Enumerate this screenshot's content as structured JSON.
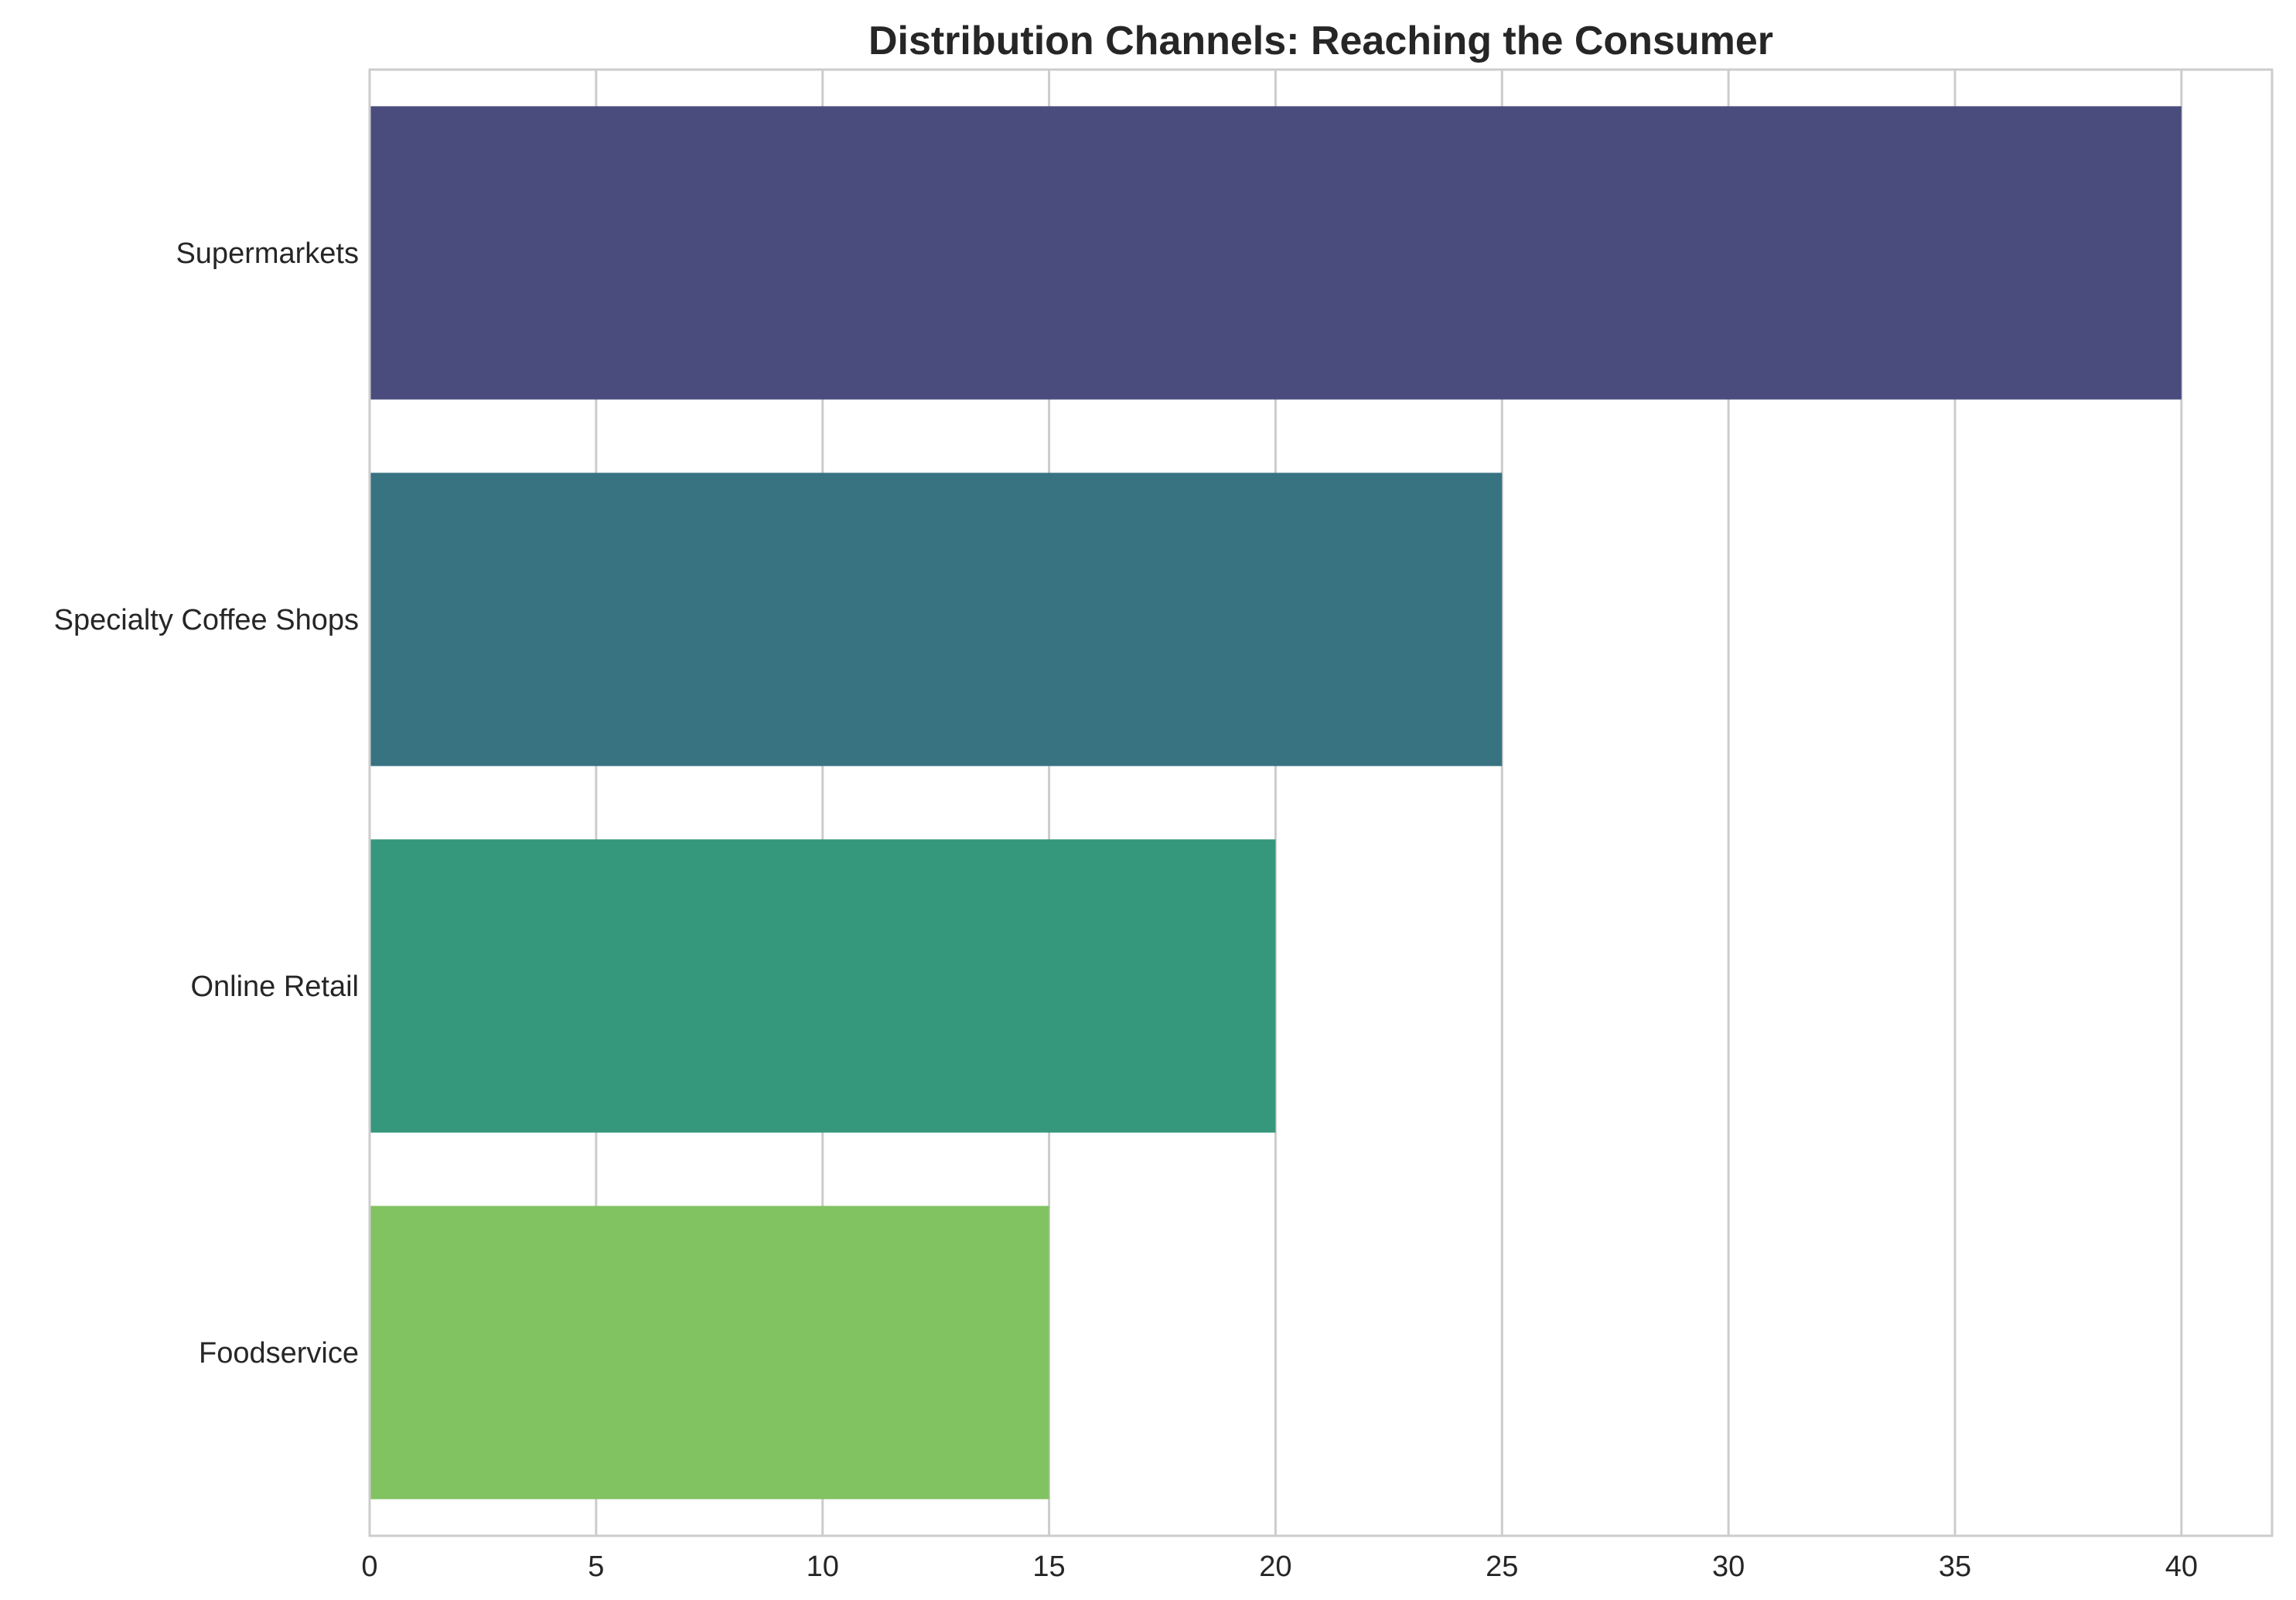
{
  "chart_data": {
    "type": "bar",
    "orientation": "horizontal",
    "title": "Distribution Channels: Reaching the Consumer",
    "xlabel": "",
    "ylabel": "",
    "categories": [
      "Supermarkets",
      "Specialty Coffee Shops",
      "Online Retail",
      "Foodservice"
    ],
    "values": [
      40,
      25,
      20,
      15
    ],
    "colors": [
      "#4a4c7d",
      "#377381",
      "#35977b",
      "#81c261"
    ],
    "xlim": [
      0,
      42
    ],
    "xticks": [
      0,
      5,
      10,
      15,
      20,
      25,
      30,
      35,
      40
    ],
    "grid": "vertical",
    "legend": "none"
  }
}
